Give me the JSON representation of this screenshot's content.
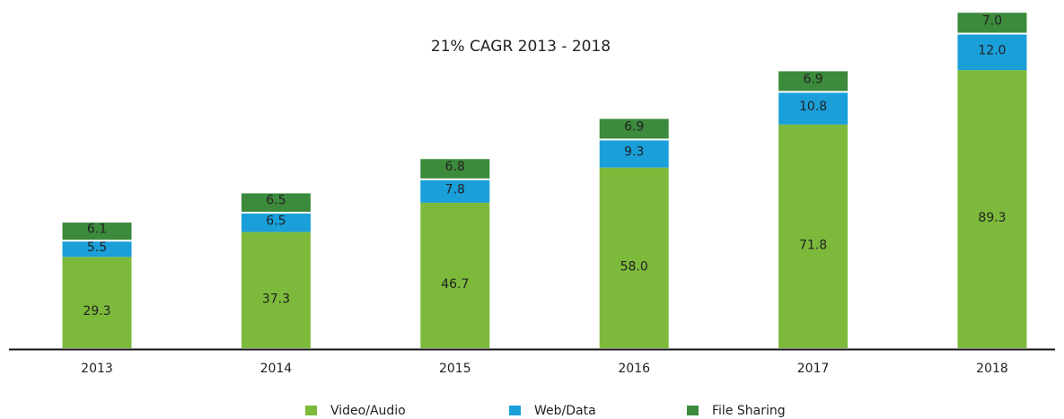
{
  "chart_data": {
    "type": "stacked_bar",
    "title": "21% CAGR 2013 - 2018",
    "categories": [
      "2013",
      "2014",
      "2015",
      "2016",
      "2017",
      "2018"
    ],
    "series": [
      {
        "name": "Video/Audio",
        "color": "#7dba3c",
        "values": [
          29.3,
          37.3,
          46.7,
          58.0,
          71.8,
          89.3
        ],
        "value_labels": [
          "29.3",
          "37.3",
          "46.7",
          "58.0",
          "71.8",
          "89.3"
        ]
      },
      {
        "name": "Web/Data",
        "color": "#1a9fd9",
        "values": [
          5.5,
          6.5,
          7.8,
          9.3,
          10.8,
          12.0
        ],
        "value_labels": [
          "5.5",
          "6.5",
          "7.8",
          "9.3",
          "10.8",
          "12.0"
        ]
      },
      {
        "name": "File Sharing",
        "color": "#3c8a3c",
        "values": [
          6.1,
          6.5,
          6.8,
          6.9,
          6.9,
          7.0
        ],
        "value_labels": [
          "6.1",
          "6.5",
          "6.8",
          "6.9",
          "6.9",
          "7.0"
        ]
      }
    ]
  }
}
